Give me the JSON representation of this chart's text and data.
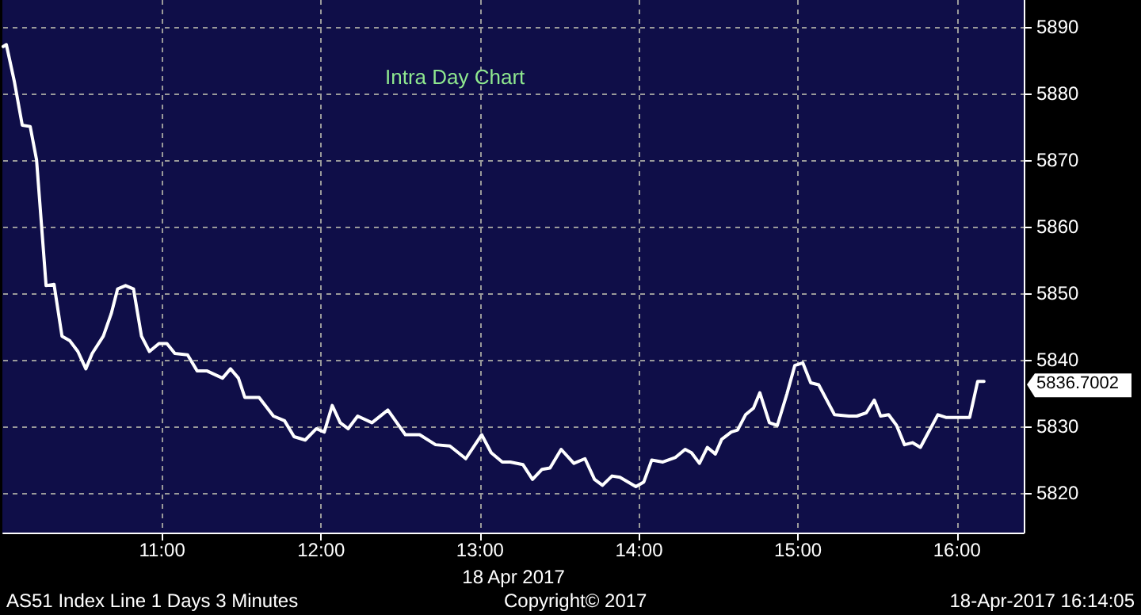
{
  "chart_data": {
    "type": "line",
    "title": "Intra Day Chart",
    "xlabel": "18 Apr 2017",
    "x": [
      10.0,
      10.02,
      10.07,
      10.12,
      10.17,
      10.21,
      10.27,
      10.32,
      10.37,
      10.42,
      10.47,
      10.52,
      10.56,
      10.63,
      10.68,
      10.72,
      10.77,
      10.82,
      10.87,
      10.92,
      10.98,
      11.03,
      11.08,
      11.16,
      11.22,
      11.28,
      11.38,
      11.43,
      11.48,
      11.52,
      11.61,
      11.7,
      11.77,
      11.83,
      11.9,
      11.97,
      12.02,
      12.07,
      12.12,
      12.17,
      12.23,
      12.32,
      12.42,
      12.53,
      12.62,
      12.72,
      12.81,
      12.91,
      13.01,
      13.07,
      13.14,
      13.19,
      13.27,
      13.33,
      13.39,
      13.44,
      13.51,
      13.59,
      13.66,
      13.72,
      13.77,
      13.83,
      13.88,
      13.98,
      14.03,
      14.08,
      14.15,
      14.23,
      14.29,
      14.33,
      14.38,
      14.43,
      14.48,
      14.52,
      14.58,
      14.62,
      14.67,
      14.72,
      14.76,
      14.82,
      14.87,
      14.93,
      14.98,
      15.03,
      15.08,
      15.13,
      15.23,
      15.32,
      15.37,
      15.43,
      15.48,
      15.52,
      15.57,
      15.62,
      15.67,
      15.72,
      15.77,
      15.88,
      15.93,
      16.08,
      16.13,
      16.17
    ],
    "series": [
      {
        "color": "#ffffff",
        "values": [
          5887.0,
          5887.3,
          5881.8,
          5875.2,
          5875.0,
          5870.0,
          5851.1,
          5851.3,
          5843.5,
          5842.8,
          5841.2,
          5838.6,
          5840.9,
          5843.5,
          5846.9,
          5850.6,
          5851.1,
          5850.6,
          5843.5,
          5841.2,
          5842.4,
          5842.4,
          5840.9,
          5840.7,
          5838.3,
          5838.3,
          5837.2,
          5838.6,
          5837.2,
          5834.3,
          5834.3,
          5831.5,
          5830.8,
          5828.4,
          5827.9,
          5829.6,
          5829.1,
          5833.1,
          5830.5,
          5829.6,
          5831.5,
          5830.5,
          5832.4,
          5828.7,
          5828.7,
          5827.2,
          5827.0,
          5825.1,
          5828.7,
          5826.0,
          5824.6,
          5824.6,
          5824.2,
          5822.0,
          5823.5,
          5823.7,
          5826.5,
          5824.4,
          5825.1,
          5822.0,
          5821.1,
          5822.5,
          5822.3,
          5820.9,
          5821.6,
          5824.9,
          5824.6,
          5825.3,
          5826.5,
          5826.0,
          5824.4,
          5826.8,
          5825.8,
          5828.0,
          5829.1,
          5829.4,
          5831.7,
          5832.7,
          5835.0,
          5830.5,
          5830.1,
          5834.8,
          5839.1,
          5839.5,
          5836.5,
          5836.2,
          5831.7,
          5831.5,
          5831.5,
          5832.0,
          5833.9,
          5831.5,
          5831.7,
          5830.1,
          5827.2,
          5827.5,
          5826.8,
          5831.7,
          5831.3,
          5831.3,
          5836.7,
          5836.7
        ]
      }
    ],
    "xlim": [
      10,
      16.42
    ],
    "xticks": [
      {
        "value": 11,
        "label": "11:00"
      },
      {
        "value": 12,
        "label": "12:00"
      },
      {
        "value": 13,
        "label": "13:00"
      },
      {
        "value": 14,
        "label": "14:00"
      },
      {
        "value": 15,
        "label": "15:00"
      },
      {
        "value": 16,
        "label": "16:00"
      }
    ],
    "ylim": [
      5814,
      5894
    ],
    "yticks": [
      5820,
      5830,
      5840,
      5850,
      5860,
      5870,
      5880,
      5890
    ],
    "grid": true,
    "marker": "none",
    "line_style": "solid",
    "annotations": [
      "5836.7002",
      "AS51 Index Line 1 Days 3 Minutes",
      "Copyright© 2017",
      "18-Apr-2017 16:14:05"
    ]
  }
}
